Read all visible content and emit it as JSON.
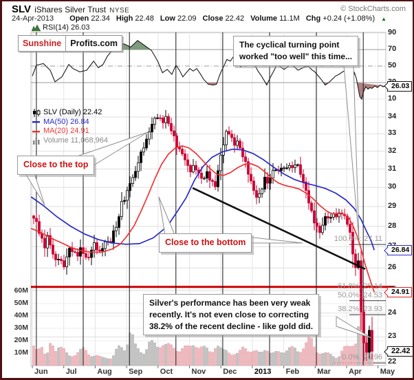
{
  "header": {
    "symbol": "SLV",
    "name": "iShares Silver Trust",
    "exchange": "NYSE",
    "copyright": "© StockCharts.com",
    "date": "24-Apr-2013",
    "quote": [
      {
        "label": "Open",
        "value": "22.34"
      },
      {
        "label": "High",
        "value": "22.48"
      },
      {
        "label": "Low",
        "value": "22.09"
      },
      {
        "label": "Close",
        "value": "22.42"
      },
      {
        "label": "Volume",
        "value": "11.1M"
      },
      {
        "label": "Chg",
        "value": "+0.24 (+1.08%)"
      }
    ],
    "chg_direction": "up",
    "chg_color": "#007700"
  },
  "rsi_pane": {
    "label": "RSI(14) 26.03",
    "ticks": [
      "90",
      "70",
      "50",
      "30",
      "10"
    ],
    "tick_values": [
      90,
      70,
      50,
      30,
      10
    ],
    "overbought": 70,
    "oversold": 30,
    "midline": 50,
    "fill_above_color": "#7d9b7d",
    "fill_below_color": "#b28080"
  },
  "branding": {
    "part1": "Sunshine",
    "part2": "Profits.com"
  },
  "legend": {
    "main": "SLV (Daily) 22.42",
    "ma50": "MA(50) 26.84",
    "ma20": "MA(20) 24.91",
    "volume": "Volume 11,068,964"
  },
  "annotations": {
    "top_callout": {
      "line1": "The cyclical turning point",
      "line2": "worked \"too well\" this time..."
    },
    "close_top": "Close to the top",
    "close_bottom": "Close to the bottom",
    "bottom_callout": {
      "line1": "Silver's performance has been very weak",
      "line2": "recently. It's not even close to correcting",
      "line3": "38.2% of the recent decline - like gold did."
    }
  },
  "price_axis": {
    "ticks": [
      34,
      33,
      32,
      31,
      30,
      29,
      28,
      27,
      26,
      25,
      24,
      23,
      22
    ],
    "badges": [
      {
        "text": "26.03",
        "value": 26.03,
        "pane": "rsi",
        "color": "#111111",
        "bold": false
      },
      {
        "text": "26.84",
        "value": 26.84,
        "pane": "price",
        "color": "#2929c8",
        "bold": false
      },
      {
        "text": "24.91",
        "value": 24.91,
        "pane": "price",
        "color": "#dd2222",
        "bold": false
      },
      {
        "text": "22.42",
        "value": 22.42,
        "pane": "price",
        "color": "#111111",
        "bold": true
      }
    ]
  },
  "volume_axis": {
    "ticks": [
      "60M",
      "50M",
      "40M",
      "30M",
      "20M",
      "10M"
    ],
    "values": [
      60,
      50,
      40,
      30,
      20,
      10
    ]
  },
  "x_axis": {
    "months": [
      "Jun",
      "Jul",
      "Aug",
      "Sep",
      "Oct",
      "Nov",
      "Dec",
      "2013",
      "Feb",
      "Mar",
      "Apr",
      "May"
    ],
    "year_index": 7
  },
  "fib_levels": [
    {
      "label": "100.0%: 27.11",
      "price": 27.11,
      "emphasis": false
    },
    {
      "label": "61.8%: 25.14",
      "price": 25.14,
      "emphasis": true
    },
    {
      "label": "50.0%: 24.53",
      "price": 24.53,
      "emphasis": false
    },
    {
      "label": "38.2%: 23.93",
      "price": 23.93,
      "emphasis": false
    },
    {
      "label": "0.0%: 21.96",
      "price": 21.96,
      "emphasis": false
    }
  ],
  "chart_data": {
    "type": "candlestick",
    "symbol": "SLV",
    "timeframe": "daily",
    "title": "SLV iShares Silver Trust NYSE, Jun 2012 - Apr 2013, with RSI(14), MA(50), MA(20), Volume and Fibonacci retracements",
    "x_unit": "months_from_2012-06-01",
    "x_range": [
      0,
      11.25
    ],
    "price_log_scale": true,
    "price_range": [
      21.8,
      34.6
    ],
    "up_color": "#000000",
    "down_color": "#cc0033",
    "vol_up_color": "#c2c2c2",
    "vol_down_color": "#f0b9bd",
    "ma50_color": "#2929c8",
    "ma20_color": "#ee3333",
    "last_ohlc": {
      "open": 22.34,
      "high": 22.48,
      "low": 22.09,
      "close": 22.42,
      "volume_millions": 11.1
    },
    "close_path": [
      [
        -0.05,
        28.65
      ],
      [
        0,
        28.5
      ],
      [
        0.13,
        28.2
      ],
      [
        0.26,
        27.5
      ],
      [
        0.39,
        27.0
      ],
      [
        0.48,
        27.5
      ],
      [
        0.61,
        26.9
      ],
      [
        0.74,
        26.3
      ],
      [
        0.88,
        26.6
      ],
      [
        0.96,
        25.9
      ],
      [
        1.05,
        26.3
      ],
      [
        1.18,
        26.9
      ],
      [
        1.31,
        26.8
      ],
      [
        1.4,
        26.5
      ],
      [
        1.53,
        26.9
      ],
      [
        1.66,
        26.6
      ],
      [
        1.79,
        26.4
      ],
      [
        1.93,
        27.2
      ],
      [
        2.06,
        26.9
      ],
      [
        2.19,
        26.7
      ],
      [
        2.32,
        27.3
      ],
      [
        2.45,
        27.1
      ],
      [
        2.58,
        27.7
      ],
      [
        2.71,
        28.1
      ],
      [
        2.84,
        29.2
      ],
      [
        2.98,
        29.5
      ],
      [
        3.11,
        30.3
      ],
      [
        3.24,
        30.6
      ],
      [
        3.37,
        31.4
      ],
      [
        3.5,
        32.1
      ],
      [
        3.63,
        32.6
      ],
      [
        3.76,
        33.4
      ],
      [
        3.9,
        33.9
      ],
      [
        4.03,
        34.1
      ],
      [
        4.11,
        33.6
      ],
      [
        4.25,
        34.0
      ],
      [
        4.38,
        33.4
      ],
      [
        4.51,
        32.8
      ],
      [
        4.64,
        32.1
      ],
      [
        4.77,
        31.9
      ],
      [
        4.9,
        31.3
      ],
      [
        5.03,
        30.9
      ],
      [
        5.16,
        31.2
      ],
      [
        5.3,
        30.7
      ],
      [
        5.43,
        30.4
      ],
      [
        5.56,
        30.8
      ],
      [
        5.69,
        30.3
      ],
      [
        5.82,
        30.1
      ],
      [
        5.91,
        30.9
      ],
      [
        6.0,
        31.8
      ],
      [
        6.08,
        32.4
      ],
      [
        6.19,
        33.2
      ],
      [
        6.3,
        33.0
      ],
      [
        6.41,
        32.3
      ],
      [
        6.52,
        32.6
      ],
      [
        6.63,
        32.0
      ],
      [
        6.74,
        31.6
      ],
      [
        6.85,
        30.9
      ],
      [
        6.96,
        30.3
      ],
      [
        7.07,
        29.7
      ],
      [
        7.18,
        29.4
      ],
      [
        7.29,
        29.9
      ],
      [
        7.4,
        30.5
      ],
      [
        7.51,
        30.2
      ],
      [
        7.61,
        30.7
      ],
      [
        7.72,
        31.1
      ],
      [
        7.83,
        30.8
      ],
      [
        7.94,
        31.2
      ],
      [
        8.05,
        30.9
      ],
      [
        8.16,
        31.3
      ],
      [
        8.27,
        31.0
      ],
      [
        8.38,
        31.4
      ],
      [
        8.49,
        31.0
      ],
      [
        8.6,
        30.4
      ],
      [
        8.71,
        29.8
      ],
      [
        8.82,
        29.1
      ],
      [
        8.93,
        28.4
      ],
      [
        9.04,
        28.0
      ],
      [
        9.15,
        27.7
      ],
      [
        9.26,
        28.2
      ],
      [
        9.37,
        28.6
      ],
      [
        9.48,
        28.3
      ],
      [
        9.58,
        28.7
      ],
      [
        9.69,
        28.4
      ],
      [
        9.8,
        28.8
      ],
      [
        9.91,
        28.5
      ],
      [
        10.02,
        28.2
      ],
      [
        10.13,
        27.5
      ],
      [
        10.22,
        26.4
      ],
      [
        10.28,
        26.0
      ],
      [
        10.35,
        26.5
      ],
      [
        10.41,
        25.9
      ],
      [
        10.48,
        23.4
      ],
      [
        10.54,
        22.6
      ],
      [
        10.59,
        23.1
      ],
      [
        10.63,
        22.4
      ],
      [
        10.67,
        22.9
      ],
      [
        10.72,
        23.3
      ],
      [
        10.76,
        22.1
      ],
      [
        10.81,
        22.42
      ]
    ],
    "ma50": [
      [
        -0.04,
        29.5
      ],
      [
        0.35,
        29.05
      ],
      [
        0.79,
        28.47
      ],
      [
        1.23,
        27.99
      ],
      [
        1.66,
        27.62
      ],
      [
        2.1,
        27.35
      ],
      [
        2.54,
        27.18
      ],
      [
        2.98,
        27.12
      ],
      [
        3.41,
        27.15
      ],
      [
        3.85,
        27.43
      ],
      [
        4.29,
        27.99
      ],
      [
        4.62,
        28.76
      ],
      [
        4.9,
        29.47
      ],
      [
        5.16,
        30.39
      ],
      [
        5.43,
        31.14
      ],
      [
        5.71,
        31.64
      ],
      [
        6.04,
        31.95
      ],
      [
        6.37,
        32.11
      ],
      [
        6.7,
        32.07
      ],
      [
        7.02,
        31.87
      ],
      [
        7.35,
        31.52
      ],
      [
        7.68,
        31.1
      ],
      [
        8.01,
        30.72
      ],
      [
        8.34,
        30.43
      ],
      [
        8.67,
        30.24
      ],
      [
        9.0,
        30.1
      ],
      [
        9.32,
        29.95
      ],
      [
        9.65,
        29.7
      ],
      [
        9.98,
        29.34
      ],
      [
        10.24,
        28.91
      ],
      [
        10.46,
        28.34
      ],
      [
        10.63,
        27.76
      ],
      [
        10.77,
        27.33
      ],
      [
        10.88,
        26.84
      ]
    ],
    "ma20": [
      [
        -0.04,
        27.89
      ],
      [
        0.24,
        27.72
      ],
      [
        0.57,
        27.43
      ],
      [
        0.9,
        27.21
      ],
      [
        1.23,
        26.97
      ],
      [
        1.55,
        26.81
      ],
      [
        1.88,
        26.74
      ],
      [
        2.21,
        26.74
      ],
      [
        2.54,
        26.89
      ],
      [
        2.8,
        27.13
      ],
      [
        3.02,
        27.53
      ],
      [
        3.24,
        28.03
      ],
      [
        3.46,
        28.76
      ],
      [
        3.68,
        29.58
      ],
      [
        3.9,
        30.47
      ],
      [
        4.11,
        31.25
      ],
      [
        4.33,
        31.83
      ],
      [
        4.55,
        32.18
      ],
      [
        4.77,
        32.3
      ],
      [
        4.99,
        32.18
      ],
      [
        5.21,
        31.87
      ],
      [
        5.43,
        31.45
      ],
      [
        5.65,
        31.03
      ],
      [
        5.86,
        30.72
      ],
      [
        6.08,
        30.65
      ],
      [
        6.3,
        30.8
      ],
      [
        6.52,
        31.06
      ],
      [
        6.74,
        31.25
      ],
      [
        6.96,
        31.29
      ],
      [
        7.18,
        31.14
      ],
      [
        7.4,
        30.84
      ],
      [
        7.61,
        30.5
      ],
      [
        7.83,
        30.24
      ],
      [
        8.05,
        30.1
      ],
      [
        8.27,
        30.02
      ],
      [
        8.49,
        29.92
      ],
      [
        8.71,
        29.7
      ],
      [
        8.93,
        29.41
      ],
      [
        9.15,
        29.05
      ],
      [
        9.37,
        28.76
      ],
      [
        9.54,
        28.62
      ],
      [
        9.72,
        28.65
      ],
      [
        9.89,
        28.62
      ],
      [
        10.07,
        28.41
      ],
      [
        10.22,
        27.96
      ],
      [
        10.35,
        27.46
      ],
      [
        10.46,
        26.9
      ],
      [
        10.57,
        26.26
      ],
      [
        10.71,
        25.62
      ],
      [
        10.82,
        25.15
      ],
      [
        10.88,
        24.91
      ]
    ],
    "rsi": [
      [
        0,
        38
      ],
      [
        0.13,
        51
      ],
      [
        0.35,
        53
      ],
      [
        0.57,
        45
      ],
      [
        0.72,
        31
      ],
      [
        0.94,
        37
      ],
      [
        1.16,
        52
      ],
      [
        1.29,
        47
      ],
      [
        1.51,
        43
      ],
      [
        1.73,
        45
      ],
      [
        1.95,
        56
      ],
      [
        2.1,
        48
      ],
      [
        2.25,
        52
      ],
      [
        2.39,
        62
      ],
      [
        2.54,
        69
      ],
      [
        2.76,
        75
      ],
      [
        2.91,
        77
      ],
      [
        3.13,
        73
      ],
      [
        3.35,
        81
      ],
      [
        3.57,
        75
      ],
      [
        3.79,
        69
      ],
      [
        3.9,
        62
      ],
      [
        4.0,
        55
      ],
      [
        4.14,
        42
      ],
      [
        4.29,
        46
      ],
      [
        4.44,
        40
      ],
      [
        4.57,
        51
      ],
      [
        4.68,
        45
      ],
      [
        4.79,
        37
      ],
      [
        4.9,
        42
      ],
      [
        5.01,
        47
      ],
      [
        5.12,
        44
      ],
      [
        5.23,
        47
      ],
      [
        5.34,
        41
      ],
      [
        5.45,
        34
      ],
      [
        5.6,
        28
      ],
      [
        5.75,
        27
      ],
      [
        5.86,
        28
      ],
      [
        5.97,
        40
      ],
      [
        6.08,
        49
      ],
      [
        6.19,
        58
      ],
      [
        6.3,
        56
      ],
      [
        6.41,
        62
      ],
      [
        6.52,
        54
      ],
      [
        6.63,
        49
      ],
      [
        6.74,
        55
      ],
      [
        6.85,
        62
      ],
      [
        6.96,
        57
      ],
      [
        7.07,
        52
      ],
      [
        7.18,
        44
      ],
      [
        7.29,
        38
      ],
      [
        7.4,
        31
      ],
      [
        7.46,
        27
      ],
      [
        7.57,
        36
      ],
      [
        7.68,
        44
      ],
      [
        7.79,
        52
      ],
      [
        7.9,
        49
      ],
      [
        8.01,
        46
      ],
      [
        8.12,
        49
      ],
      [
        8.23,
        52
      ],
      [
        8.34,
        49
      ],
      [
        8.45,
        45
      ],
      [
        8.56,
        47
      ],
      [
        8.67,
        49
      ],
      [
        8.78,
        50
      ],
      [
        8.88,
        46
      ],
      [
        8.99,
        43
      ],
      [
        9.1,
        38
      ],
      [
        9.21,
        33
      ],
      [
        9.32,
        27
      ],
      [
        9.43,
        30
      ],
      [
        9.54,
        34
      ],
      [
        9.65,
        38
      ],
      [
        9.76,
        40
      ],
      [
        9.87,
        43
      ],
      [
        9.98,
        45
      ],
      [
        10.04,
        30
      ],
      [
        10.09,
        15
      ],
      [
        10.13,
        8
      ],
      [
        10.2,
        25
      ],
      [
        10.24,
        43
      ],
      [
        10.31,
        35
      ],
      [
        10.42,
        13
      ],
      [
        10.48,
        10
      ],
      [
        10.55,
        20
      ],
      [
        10.61,
        25
      ],
      [
        10.68,
        22
      ],
      [
        10.74,
        24
      ],
      [
        10.81,
        23
      ],
      [
        10.9,
        26
      ],
      [
        10.98,
        24
      ],
      [
        11.07,
        27
      ],
      [
        11.16,
        25
      ],
      [
        11.23,
        26.03
      ]
    ],
    "rsi_last": 26.03,
    "volume_path_millions": [
      [
        0,
        12
      ],
      [
        0.09,
        20
      ],
      [
        0.18,
        10
      ],
      [
        0.26,
        23
      ],
      [
        0.35,
        8
      ],
      [
        0.53,
        9
      ],
      [
        0.61,
        25
      ],
      [
        0.7,
        11
      ],
      [
        0.79,
        17
      ],
      [
        0.96,
        13
      ],
      [
        1.14,
        8
      ],
      [
        1.31,
        9
      ],
      [
        1.49,
        11
      ],
      [
        1.66,
        13
      ],
      [
        1.84,
        9
      ],
      [
        2.01,
        8
      ],
      [
        2.19,
        6
      ],
      [
        2.36,
        7
      ],
      [
        2.54,
        6
      ],
      [
        2.71,
        13
      ],
      [
        2.8,
        15
      ],
      [
        2.98,
        14
      ],
      [
        3.06,
        26
      ],
      [
        3.15,
        28
      ],
      [
        3.24,
        16
      ],
      [
        3.41,
        12
      ],
      [
        3.59,
        11
      ],
      [
        3.68,
        18
      ],
      [
        3.85,
        17
      ],
      [
        4.03,
        15
      ],
      [
        4.11,
        20
      ],
      [
        4.29,
        16
      ],
      [
        4.46,
        14
      ],
      [
        4.64,
        13
      ],
      [
        4.81,
        15
      ],
      [
        4.99,
        13
      ],
      [
        5.16,
        19
      ],
      [
        5.34,
        15
      ],
      [
        5.51,
        13
      ],
      [
        5.69,
        11
      ],
      [
        5.86,
        18
      ],
      [
        6.04,
        11
      ],
      [
        6.21,
        12
      ],
      [
        6.39,
        10
      ],
      [
        6.56,
        9
      ],
      [
        6.74,
        15
      ],
      [
        6.92,
        13
      ],
      [
        7.09,
        11
      ],
      [
        7.26,
        9
      ],
      [
        7.44,
        16
      ],
      [
        7.61,
        9
      ],
      [
        7.79,
        10
      ],
      [
        7.97,
        12
      ],
      [
        8.14,
        14
      ],
      [
        8.32,
        13
      ],
      [
        8.49,
        11
      ],
      [
        8.67,
        18
      ],
      [
        8.84,
        21
      ],
      [
        9.02,
        12
      ],
      [
        9.19,
        11
      ],
      [
        9.37,
        9
      ],
      [
        9.54,
        8
      ],
      [
        9.72,
        7
      ],
      [
        9.89,
        13
      ],
      [
        10.07,
        14
      ],
      [
        10.24,
        20
      ],
      [
        10.33,
        22
      ],
      [
        10.41,
        40
      ],
      [
        10.48,
        62
      ],
      [
        10.54,
        33
      ],
      [
        10.61,
        25
      ],
      [
        10.67,
        18
      ],
      [
        10.74,
        14
      ],
      [
        10.81,
        11.1
      ]
    ],
    "trendline": [
      [
        5.1,
        29.97
      ],
      [
        10.59,
        25.95
      ]
    ],
    "support_line": {
      "price": 25.14,
      "color": "#cc0000"
    },
    "cycle_lines_t": [
      0.13,
      1.62,
      3.09,
      4.57,
      6.06,
      7.55,
      9.04,
      10.53
    ]
  }
}
